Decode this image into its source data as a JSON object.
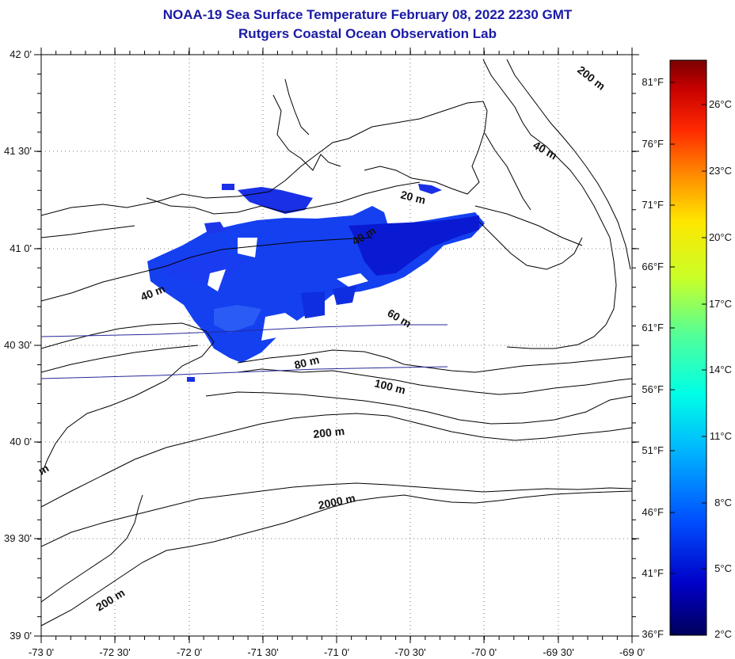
{
  "header": {
    "title": "NOAA-19 Sea Surface Temperature February 08, 2022 2230 GMT",
    "subtitle": "Rutgers Coastal Ocean Observation Lab"
  },
  "map": {
    "lat_labels": [
      "42 0'",
      "41 30'",
      "41 0'",
      "40 30'",
      "40 0'",
      "39 30'",
      "39 0'"
    ],
    "lon_labels": [
      "-73 0'",
      "-72 30'",
      "-72 0'",
      "-71 30'",
      "-71 0'",
      "-70 30'",
      "-70 0'",
      "-69 30'",
      "-69 0'"
    ],
    "contour_labels": [
      "200 m",
      "40 m",
      "20 m",
      "40 m",
      "40 m",
      "60 m",
      "80 m",
      "100 m",
      "200 m",
      "2000 m",
      "200 m",
      "m"
    ]
  },
  "colorbar": {
    "f_labels": [
      "81°F",
      "76°F",
      "71°F",
      "66°F",
      "61°F",
      "56°F",
      "51°F",
      "46°F",
      "41°F",
      "36°F"
    ],
    "c_labels": [
      "26°C",
      "23°C",
      "20°C",
      "17°C",
      "14°C",
      "11°C",
      "8°C",
      "5°C",
      "2°C"
    ],
    "colors": [
      "#00005a",
      "#0000c8",
      "#0050ff",
      "#00b4ff",
      "#00ffe6",
      "#50ff9a",
      "#c8ff28",
      "#ffe600",
      "#ff8c00",
      "#ff2800",
      "#c80000",
      "#7a0000"
    ]
  }
}
